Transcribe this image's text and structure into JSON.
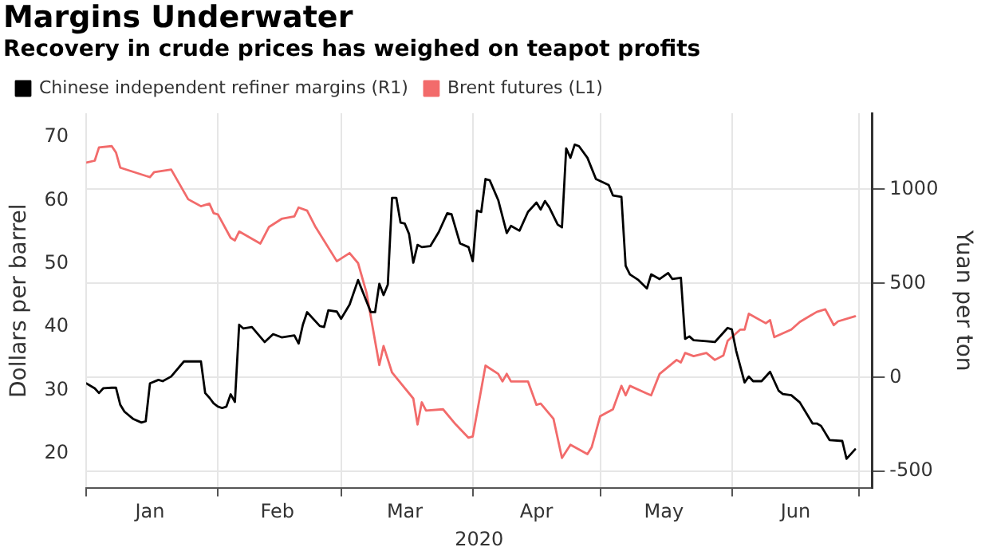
{
  "chart_data": {
    "type": "line",
    "title": "Margins Underwater",
    "subtitle": "Recovery in crude prices has weighed on teapot profits",
    "xlabel": "2020",
    "ylabel": "Dollars per barrel",
    "y2label": "Yuan per ton",
    "xlim": [
      "2020-01-01",
      "2020-07-04"
    ],
    "xticks": [
      {
        "value": "2020-01-01",
        "label": null
      },
      {
        "value": "2020-01-16",
        "label": "Jan"
      },
      {
        "value": "2020-02-01",
        "label": null
      },
      {
        "value": "2020-02-15",
        "label": "Feb"
      },
      {
        "value": "2020-03-01",
        "label": null
      },
      {
        "value": "2020-03-16",
        "label": "Mar"
      },
      {
        "value": "2020-04-01",
        "label": null
      },
      {
        "value": "2020-04-16",
        "label": "Apr"
      },
      {
        "value": "2020-05-01",
        "label": null
      },
      {
        "value": "2020-05-16",
        "label": "May"
      },
      {
        "value": "2020-06-01",
        "label": null
      },
      {
        "value": "2020-06-16",
        "label": "Jun"
      },
      {
        "value": "2020-07-01",
        "label": null
      }
    ],
    "ylim": [
      14.5,
      73.8
    ],
    "yticks": [
      20,
      30,
      40,
      50,
      60,
      70
    ],
    "y2lim": [
      -590,
      1405
    ],
    "y2ticks": [
      -500,
      0,
      500,
      1000
    ],
    "grid": true,
    "legend": "top left",
    "marker": "none",
    "line_style": "solid",
    "series": [
      {
        "name": "Chinese independent refiner margins (R1)",
        "color": "#000000",
        "axis": "y2",
        "x": [
          "2020-01-01",
          "2020-01-03",
          "2020-01-04",
          "2020-01-05",
          "2020-01-07",
          "2020-01-08",
          "2020-01-09",
          "2020-01-10",
          "2020-01-12",
          "2020-01-14",
          "2020-01-15",
          "2020-01-16",
          "2020-01-18",
          "2020-01-19",
          "2020-01-21",
          "2020-01-24",
          "2020-01-28",
          "2020-01-29",
          "2020-01-30",
          "2020-01-31",
          "2020-02-01",
          "2020-02-02",
          "2020-02-03",
          "2020-02-04",
          "2020-02-05",
          "2020-02-06",
          "2020-02-07",
          "2020-02-09",
          "2020-02-12",
          "2020-02-14",
          "2020-02-16",
          "2020-02-19",
          "2020-02-20",
          "2020-02-21",
          "2020-02-22",
          "2020-02-25",
          "2020-02-26",
          "2020-02-27",
          "2020-02-29",
          "2020-03-01",
          "2020-03-03",
          "2020-03-05",
          "2020-03-08",
          "2020-03-09",
          "2020-03-10",
          "2020-03-11",
          "2020-03-12",
          "2020-03-13",
          "2020-03-14",
          "2020-03-15",
          "2020-03-16",
          "2020-03-17",
          "2020-03-18",
          "2020-03-19",
          "2020-03-20",
          "2020-03-22",
          "2020-03-24",
          "2020-03-26",
          "2020-03-27",
          "2020-03-29",
          "2020-03-31",
          "2020-04-01",
          "2020-04-02",
          "2020-04-03",
          "2020-04-04",
          "2020-04-05",
          "2020-04-07",
          "2020-04-09",
          "2020-04-10",
          "2020-04-12",
          "2020-04-14",
          "2020-04-16",
          "2020-04-17",
          "2020-04-18",
          "2020-04-19",
          "2020-04-21",
          "2020-04-22",
          "2020-04-23",
          "2020-04-24",
          "2020-04-25",
          "2020-04-26",
          "2020-04-28",
          "2020-04-30",
          "2020-05-03",
          "2020-05-04",
          "2020-05-06",
          "2020-05-07",
          "2020-05-08",
          "2020-05-10",
          "2020-05-12",
          "2020-05-13",
          "2020-05-15",
          "2020-05-17",
          "2020-05-18",
          "2020-05-20",
          "2020-05-21",
          "2020-05-22",
          "2020-05-23",
          "2020-05-26",
          "2020-05-28",
          "2020-05-31",
          "2020-06-01",
          "2020-06-02",
          "2020-06-04",
          "2020-06-05",
          "2020-06-06",
          "2020-06-08",
          "2020-06-10",
          "2020-06-12",
          "2020-06-13",
          "2020-06-15",
          "2020-06-17",
          "2020-06-20",
          "2020-06-21",
          "2020-06-22",
          "2020-06-24",
          "2020-06-27",
          "2020-06-28",
          "2020-06-30"
        ],
        "values": [
          -32,
          -58,
          -83,
          -58,
          -55,
          -55,
          -145,
          -182,
          -220,
          -240,
          -233,
          -32,
          -13,
          -20,
          5,
          85,
          85,
          -83,
          -108,
          -138,
          -155,
          -163,
          -155,
          -90,
          -130,
          280,
          260,
          268,
          188,
          230,
          213,
          223,
          180,
          280,
          347,
          273,
          268,
          357,
          350,
          312,
          387,
          518,
          347,
          347,
          498,
          438,
          493,
          955,
          955,
          823,
          818,
          763,
          610,
          705,
          693,
          698,
          773,
          873,
          868,
          713,
          693,
          618,
          887,
          880,
          1055,
          1048,
          943,
          768,
          806,
          780,
          880,
          930,
          893,
          938,
          905,
          813,
          798,
          1218,
          1168,
          1238,
          1230,
          1168,
          1055,
          1023,
          968,
          960,
          593,
          548,
          518,
          473,
          548,
          523,
          555,
          523,
          530,
          205,
          218,
          198,
          193,
          188,
          263,
          255,
          143,
          -27,
          5,
          -20,
          -20,
          30,
          -70,
          -88,
          -95,
          -133,
          -245,
          -245,
          -258,
          -333,
          -338,
          -433,
          -383
        ]
      },
      {
        "name": "Brent futures (L1)",
        "color": "#f26b6b",
        "x": [
          "2020-01-01",
          "2020-01-03",
          "2020-01-04",
          "2020-01-07",
          "2020-01-08",
          "2020-01-09",
          "2020-01-15",
          "2020-01-16",
          "2020-01-17",
          "2020-01-21",
          "2020-01-25",
          "2020-01-28",
          "2020-01-30",
          "2020-01-31",
          "2020-02-01",
          "2020-02-04",
          "2020-02-05",
          "2020-02-06",
          "2020-02-11",
          "2020-02-13",
          "2020-02-16",
          "2020-02-19",
          "2020-02-20",
          "2020-02-22",
          "2020-02-24",
          "2020-02-29",
          "2020-03-03",
          "2020-03-05",
          "2020-03-07",
          "2020-03-10",
          "2020-03-11",
          "2020-03-13",
          "2020-03-18",
          "2020-03-19",
          "2020-03-20",
          "2020-03-21",
          "2020-03-25",
          "2020-03-28",
          "2020-03-31",
          "2020-04-01",
          "2020-04-04",
          "2020-04-07",
          "2020-04-08",
          "2020-04-09",
          "2020-04-10",
          "2020-04-14",
          "2020-04-16",
          "2020-04-17",
          "2020-04-20",
          "2020-04-22",
          "2020-04-24",
          "2020-04-28",
          "2020-04-29",
          "2020-05-01",
          "2020-05-04",
          "2020-05-06",
          "2020-05-07",
          "2020-05-08",
          "2020-05-12",
          "2020-05-13",
          "2020-05-15",
          "2020-05-19",
          "2020-05-20",
          "2020-05-21",
          "2020-05-23",
          "2020-05-26",
          "2020-05-28",
          "2020-05-30",
          "2020-05-31",
          "2020-06-03",
          "2020-06-04",
          "2020-06-05",
          "2020-06-09",
          "2020-06-10",
          "2020-06-11",
          "2020-06-15",
          "2020-06-17",
          "2020-06-21",
          "2020-06-23",
          "2020-06-25",
          "2020-06-26",
          "2020-06-30"
        ],
        "values": [
          66.0,
          66.3,
          68.4,
          68.6,
          67.6,
          65.2,
          63.9,
          63.7,
          64.5,
          64.9,
          60.2,
          59.1,
          59.5,
          58.0,
          57.8,
          54.1,
          53.7,
          55.1,
          53.2,
          55.8,
          57.1,
          57.5,
          58.9,
          58.4,
          55.8,
          50.4,
          51.7,
          50.1,
          45.4,
          34.0,
          37.0,
          32.8,
          28.7,
          24.6,
          28.1,
          26.8,
          27.0,
          24.6,
          22.5,
          22.7,
          33.9,
          32.6,
          31.4,
          32.6,
          31.4,
          31.4,
          27.7,
          27.9,
          25.5,
          19.3,
          21.4,
          19.9,
          21.0,
          25.9,
          27.0,
          30.7,
          29.2,
          30.7,
          29.5,
          29.2,
          32.6,
          34.8,
          34.4,
          35.9,
          35.4,
          35.9,
          34.8,
          35.5,
          37.8,
          39.6,
          39.6,
          42.1,
          40.6,
          41.1,
          38.4,
          39.6,
          40.8,
          42.4,
          42.8,
          40.3,
          40.9,
          41.7
        ]
      }
    ]
  }
}
